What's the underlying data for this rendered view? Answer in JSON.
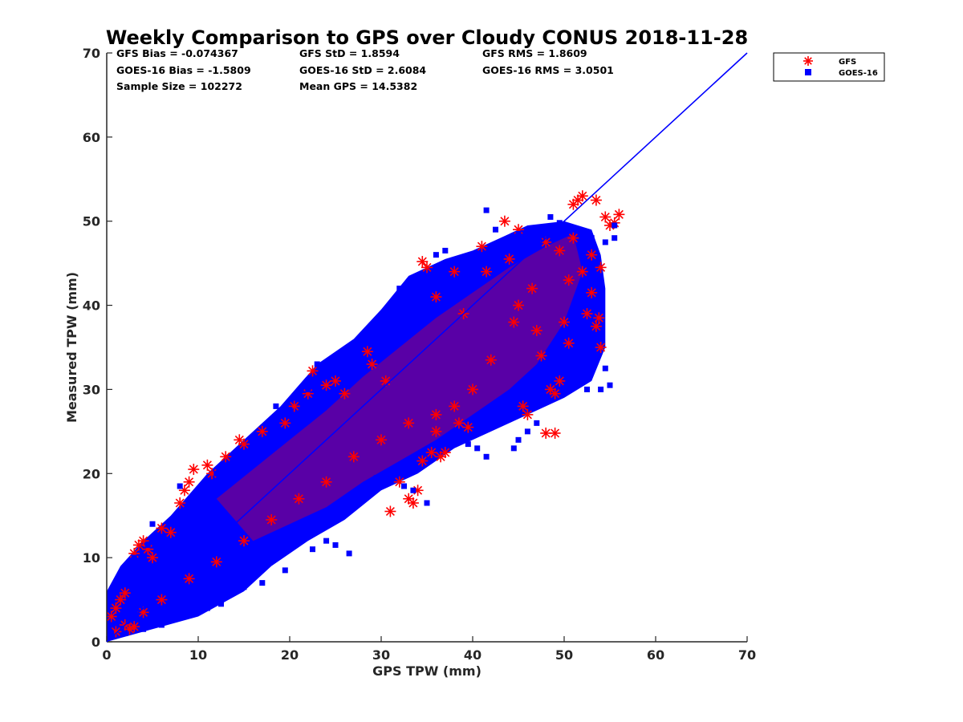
{
  "chart_data": {
    "type": "scatter",
    "title": "Weekly Comparison to GPS over Cloudy CONUS 2018-11-28",
    "xlabel": "GPS TPW (mm)",
    "ylabel": "Measured TPW (mm)",
    "xlim": [
      0,
      70
    ],
    "ylim": [
      0,
      70
    ],
    "xticks": [
      "0",
      "10",
      "20",
      "30",
      "40",
      "50",
      "60",
      "70"
    ],
    "yticks": [
      "0",
      "10",
      "20",
      "30",
      "40",
      "50",
      "60",
      "70"
    ],
    "grid": false,
    "legend_position": "outside top-right",
    "stats": {
      "gfs_bias": "GFS Bias = -0.074367",
      "gfs_std": "GFS StD = 1.8594",
      "gfs_rms": "GFS RMS = 1.8609",
      "goes_bias": "GOES-16 Bias = -1.5809",
      "goes_std": "GOES-16 StD = 2.6084",
      "goes_rms": "GOES-16 RMS = 3.0501",
      "sample_size": "Sample Size = 102272",
      "mean_gps": "Mean GPS = 14.5382"
    },
    "reference_line": {
      "x": [
        0,
        70
      ],
      "y": [
        0,
        70
      ],
      "color": "#0000ff"
    },
    "series": [
      {
        "name": "GFS",
        "marker": "asterisk",
        "color": "#ff0000",
        "points": [
          [
            0.5,
            3.0
          ],
          [
            1.0,
            4.0
          ],
          [
            1.5,
            5.0
          ],
          [
            2.0,
            5.8
          ],
          [
            2.5,
            1.5
          ],
          [
            3.0,
            1.8
          ],
          [
            3.0,
            10.5
          ],
          [
            3.5,
            11.5
          ],
          [
            4.0,
            12.0
          ],
          [
            4.5,
            11.0
          ],
          [
            5.0,
            10.0
          ],
          [
            6.0,
            13.5
          ],
          [
            7.0,
            13.0
          ],
          [
            8.0,
            16.5
          ],
          [
            8.5,
            18.0
          ],
          [
            9.0,
            19.0
          ],
          [
            9.5,
            20.5
          ],
          [
            11.0,
            21.0
          ],
          [
            11.5,
            20.0
          ],
          [
            13.0,
            22.0
          ],
          [
            14.5,
            24.0
          ],
          [
            15.0,
            23.5
          ],
          [
            17.0,
            25.0
          ],
          [
            19.5,
            26.0
          ],
          [
            20.5,
            28.0
          ],
          [
            22.0,
            29.5
          ],
          [
            22.5,
            32.2
          ],
          [
            24.0,
            30.5
          ],
          [
            25.0,
            31.0
          ],
          [
            28.5,
            34.5
          ],
          [
            29.0,
            33.0
          ],
          [
            31.0,
            15.5
          ],
          [
            32.0,
            19.0
          ],
          [
            33.0,
            17.0
          ],
          [
            33.5,
            16.5
          ],
          [
            34.0,
            18.0
          ],
          [
            34.5,
            21.5
          ],
          [
            35.5,
            22.5
          ],
          [
            36.0,
            25.0
          ],
          [
            36.5,
            22.0
          ],
          [
            37.0,
            22.5
          ],
          [
            38.5,
            26.0
          ],
          [
            39.5,
            25.5
          ],
          [
            34.5,
            45.2
          ],
          [
            35.0,
            44.5
          ],
          [
            38.0,
            44.0
          ],
          [
            41.0,
            47.0
          ],
          [
            43.5,
            50.0
          ],
          [
            44.0,
            45.5
          ],
          [
            45.0,
            49.0
          ],
          [
            45.5,
            28.0
          ],
          [
            46.0,
            27.0
          ],
          [
            47.5,
            34.0
          ],
          [
            48.0,
            24.8
          ],
          [
            49.0,
            24.8
          ],
          [
            48.5,
            30.0
          ],
          [
            49.0,
            29.5
          ],
          [
            49.5,
            31.0
          ],
          [
            50.0,
            38.0
          ],
          [
            50.5,
            35.5
          ],
          [
            51.0,
            52.0
          ],
          [
            51.5,
            52.5
          ],
          [
            52.0,
            53.0
          ],
          [
            52.5,
            39.0
          ],
          [
            53.0,
            41.5
          ],
          [
            53.5,
            52.5
          ],
          [
            53.5,
            37.5
          ],
          [
            54.0,
            44.5
          ],
          [
            54.0,
            35.0
          ],
          [
            54.5,
            50.5
          ],
          [
            55.0,
            49.5
          ],
          [
            55.5,
            49.8
          ],
          [
            56.0,
            50.8
          ],
          [
            53.8,
            38.5
          ],
          [
            53.0,
            46.0
          ],
          [
            52.0,
            44.0
          ],
          [
            50.5,
            43.0
          ],
          [
            49.5,
            46.5
          ],
          [
            48.0,
            47.5
          ],
          [
            46.5,
            42.0
          ],
          [
            44.5,
            38.0
          ],
          [
            42.0,
            33.5
          ],
          [
            40.0,
            30.0
          ],
          [
            38.0,
            28.0
          ],
          [
            36.0,
            27.0
          ],
          [
            33.0,
            26.0
          ],
          [
            30.0,
            24.0
          ],
          [
            27.0,
            22.0
          ],
          [
            24.0,
            19.0
          ],
          [
            21.0,
            17.0
          ],
          [
            18.0,
            14.5
          ],
          [
            15.0,
            12.0
          ],
          [
            12.0,
            9.5
          ],
          [
            9.0,
            7.5
          ],
          [
            6.0,
            5.0
          ],
          [
            4.0,
            3.5
          ],
          [
            2.0,
            2.0
          ],
          [
            1.0,
            1.2
          ],
          [
            36.0,
            41.0
          ],
          [
            39.0,
            39.0
          ],
          [
            41.5,
            44.0
          ],
          [
            26.0,
            29.5
          ],
          [
            30.5,
            31.0
          ],
          [
            45.0,
            40.0
          ],
          [
            47.0,
            37.0
          ],
          [
            51.0,
            48.0
          ]
        ]
      },
      {
        "name": "GOES-16",
        "marker": "square",
        "color": "#0000ff",
        "points": [
          [
            41.5,
            51.3
          ],
          [
            48.5,
            50.5
          ],
          [
            49.5,
            49.8
          ],
          [
            52.0,
            47.5
          ],
          [
            53.0,
            48.0
          ],
          [
            53.5,
            45.0
          ],
          [
            54.5,
            47.5
          ],
          [
            55.5,
            49.5
          ],
          [
            55.5,
            48.0
          ],
          [
            55.0,
            30.5
          ],
          [
            54.5,
            32.5
          ],
          [
            54.0,
            30.0
          ],
          [
            52.5,
            30.0
          ],
          [
            51.5,
            31.0
          ],
          [
            47.0,
            26.0
          ],
          [
            46.0,
            25.0
          ],
          [
            45.0,
            24.0
          ],
          [
            44.5,
            23.0
          ],
          [
            41.5,
            22.0
          ],
          [
            40.5,
            23.0
          ],
          [
            39.5,
            23.5
          ],
          [
            35.0,
            16.5
          ],
          [
            33.5,
            18.0
          ],
          [
            32.5,
            18.5
          ],
          [
            31.0,
            20.0
          ],
          [
            29.5,
            19.5
          ],
          [
            26.5,
            10.5
          ],
          [
            25.0,
            11.5
          ],
          [
            24.0,
            12.0
          ],
          [
            22.5,
            11.0
          ],
          [
            19.5,
            8.5
          ],
          [
            17.0,
            7.0
          ],
          [
            15.0,
            6.5
          ],
          [
            12.5,
            4.5
          ],
          [
            11.0,
            4.0
          ],
          [
            8.5,
            3.0
          ],
          [
            6.0,
            2.0
          ],
          [
            4.0,
            1.5
          ],
          [
            2.0,
            1.0
          ],
          [
            0.5,
            1.0
          ],
          [
            0.5,
            5.0
          ],
          [
            1.0,
            6.0
          ],
          [
            2.0,
            8.0
          ],
          [
            3.0,
            10.0
          ],
          [
            4.5,
            11.5
          ],
          [
            6.0,
            12.5
          ],
          [
            8.0,
            15.0
          ],
          [
            10.0,
            18.0
          ],
          [
            12.0,
            20.0
          ],
          [
            14.0,
            22.0
          ],
          [
            16.0,
            24.0
          ],
          [
            18.0,
            26.0
          ],
          [
            20.0,
            27.5
          ],
          [
            22.0,
            30.0
          ],
          [
            24.0,
            32.0
          ],
          [
            27.0,
            35.0
          ],
          [
            29.5,
            37.5
          ],
          [
            31.5,
            40.5
          ],
          [
            32.0,
            42.0
          ],
          [
            34.0,
            43.0
          ],
          [
            36.0,
            46.0
          ],
          [
            37.0,
            46.5
          ],
          [
            42.5,
            49.0
          ],
          [
            45.0,
            48.5
          ],
          [
            13.0,
            20.0
          ],
          [
            18.5,
            28.0
          ],
          [
            23.0,
            33.0
          ],
          [
            28.0,
            36.5
          ],
          [
            8.0,
            18.5
          ],
          [
            5.0,
            14.0
          ]
        ]
      }
    ],
    "bulk_region": {
      "series": "GOES-16",
      "outline_data_units": [
        [
          0,
          0
        ],
        [
          5,
          1.5
        ],
        [
          10,
          3
        ],
        [
          15,
          6
        ],
        [
          18,
          9
        ],
        [
          22,
          12
        ],
        [
          26,
          14.5
        ],
        [
          30,
          18
        ],
        [
          34,
          20
        ],
        [
          38,
          23
        ],
        [
          42,
          25
        ],
        [
          46,
          27
        ],
        [
          50,
          29
        ],
        [
          53,
          31
        ],
        [
          54.5,
          35
        ],
        [
          54.5,
          42
        ],
        [
          54,
          46
        ],
        [
          53,
          49
        ],
        [
          50,
          50
        ],
        [
          46,
          49.5
        ],
        [
          43,
          48
        ],
        [
          40,
          46.5
        ],
        [
          37,
          45.5
        ],
        [
          33,
          43.5
        ],
        [
          30,
          39.5
        ],
        [
          27,
          36
        ],
        [
          23,
          33
        ],
        [
          19,
          28
        ],
        [
          15,
          24
        ],
        [
          11,
          20
        ],
        [
          7,
          15
        ],
        [
          4,
          12
        ],
        [
          1.5,
          9
        ],
        [
          0,
          6
        ]
      ]
    },
    "gfs_region": {
      "series": "GFS",
      "outline_data_units": [
        [
          12,
          17
        ],
        [
          16,
          20.5
        ],
        [
          20,
          24
        ],
        [
          24,
          27.5
        ],
        [
          28,
          31.5
        ],
        [
          32,
          35
        ],
        [
          36,
          38.5
        ],
        [
          40,
          41.5
        ],
        [
          44,
          44.5
        ],
        [
          48,
          47
        ],
        [
          51,
          48.5
        ],
        [
          52,
          44
        ],
        [
          50,
          38
        ],
        [
          47,
          33
        ],
        [
          44,
          30
        ],
        [
          40,
          27
        ],
        [
          36,
          24
        ],
        [
          32,
          21.5
        ],
        [
          28,
          19
        ],
        [
          24,
          16
        ],
        [
          20,
          14
        ],
        [
          16,
          12
        ]
      ]
    },
    "legend": [
      {
        "label": "GFS",
        "marker": "asterisk",
        "color": "#ff0000"
      },
      {
        "label": "GOES-16",
        "marker": "square",
        "color": "#0000ff"
      }
    ]
  }
}
